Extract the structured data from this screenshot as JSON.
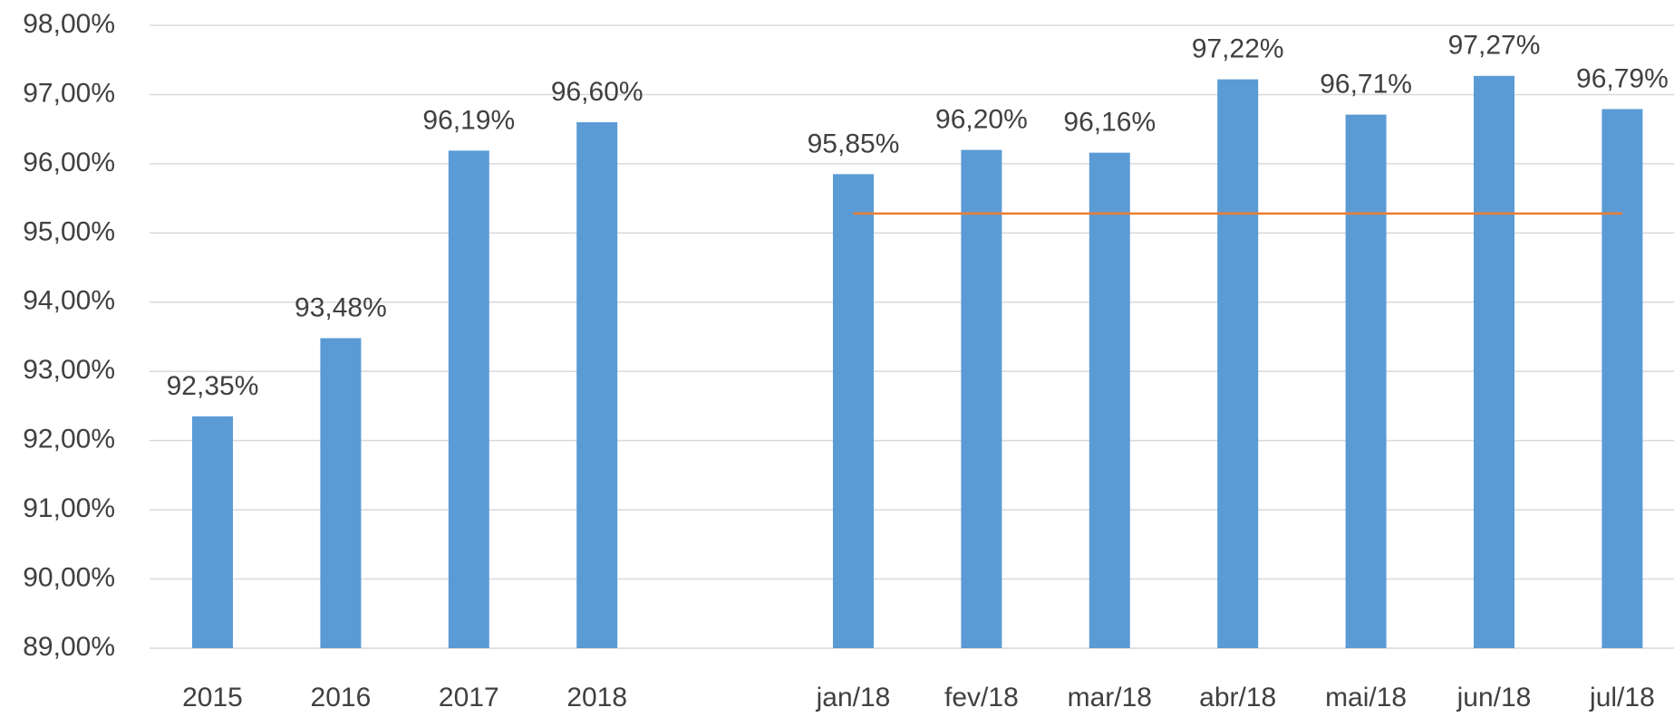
{
  "chart_data": {
    "type": "bar",
    "categories": [
      "2015",
      "2016",
      "2017",
      "2018",
      null,
      "jan/18",
      "fev/18",
      "mar/18",
      "abr/18",
      "mai/18",
      "jun/18",
      "jul/18"
    ],
    "series": [
      {
        "type": "bar",
        "color": "#5b9bd5",
        "values": [
          92.35,
          93.48,
          96.19,
          96.6,
          null,
          95.85,
          96.2,
          96.16,
          97.22,
          96.71,
          97.27,
          96.79
        ],
        "value_labels": [
          "92,35%",
          "93,48%",
          "96,19%",
          "96,60%",
          null,
          "95,85%",
          "96,20%",
          "96,16%",
          "97,22%",
          "96,71%",
          "97,27%",
          "96,79%"
        ]
      },
      {
        "type": "line",
        "color": "#ed7d31",
        "values": [
          null,
          null,
          null,
          null,
          null,
          95.28,
          95.28,
          95.28,
          95.28,
          95.28,
          95.28,
          95.28
        ]
      }
    ],
    "ylim": [
      89,
      98
    ],
    "yticks": [
      {
        "value": 89,
        "label": "89,00%"
      },
      {
        "value": 90,
        "label": "90,00%"
      },
      {
        "value": 91,
        "label": "91,00%"
      },
      {
        "value": 92,
        "label": "92,00%"
      },
      {
        "value": 93,
        "label": "93,00%"
      },
      {
        "value": 94,
        "label": "94,00%"
      },
      {
        "value": 95,
        "label": "95,00%"
      },
      {
        "value": 96,
        "label": "96,00%"
      },
      {
        "value": 97,
        "label": "97,00%"
      },
      {
        "value": 98,
        "label": "98,00%"
      }
    ],
    "grid": true
  }
}
